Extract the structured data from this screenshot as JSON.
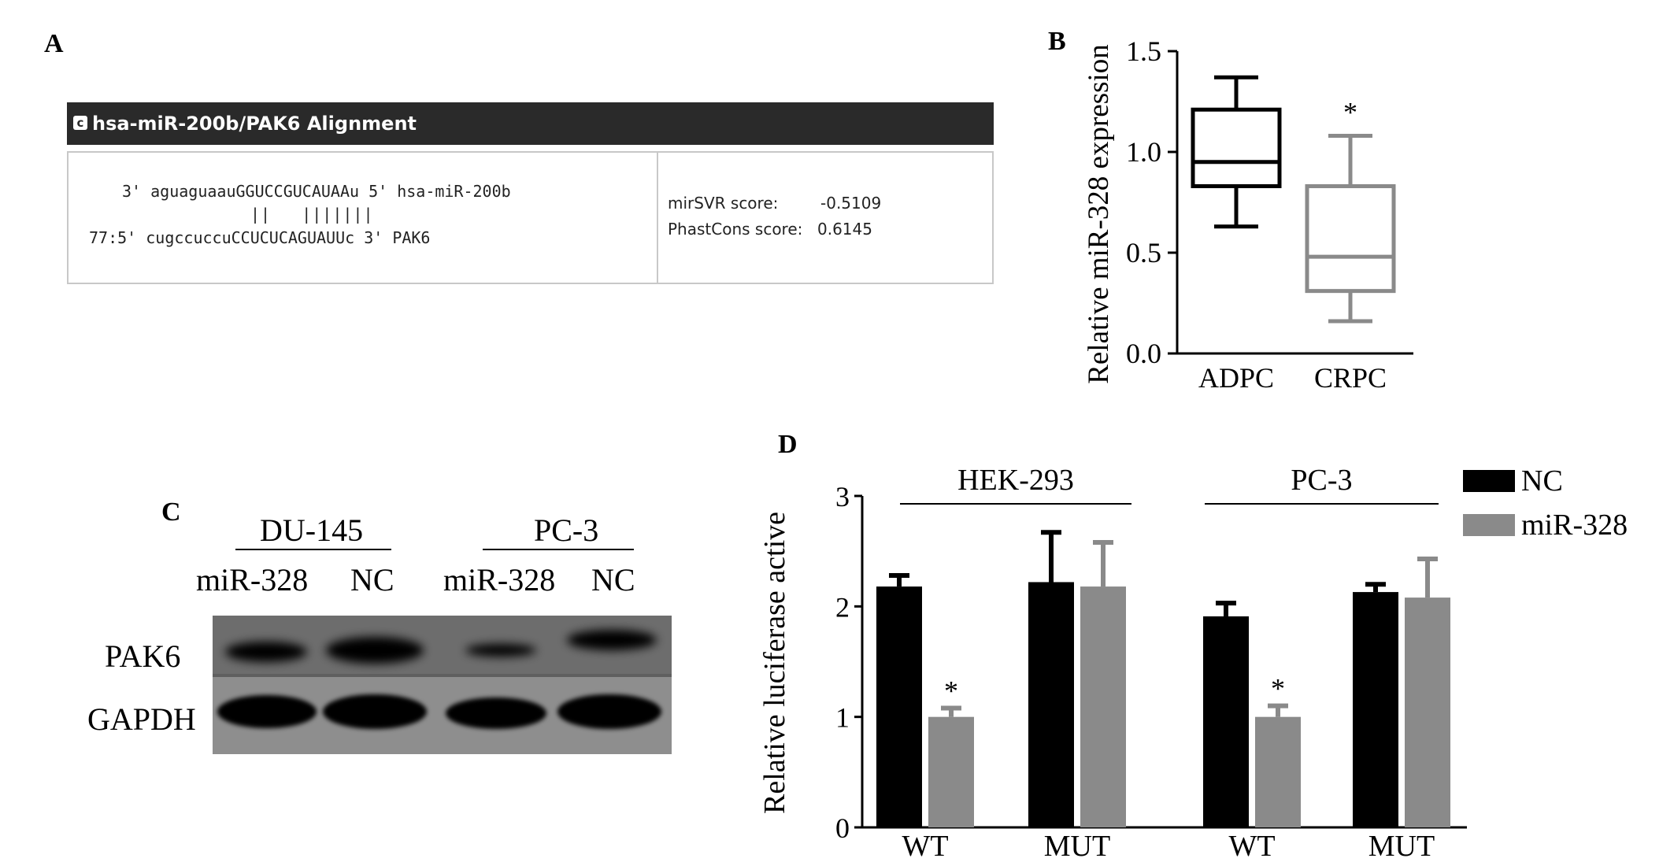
{
  "panel_labels": {
    "a": "A",
    "b": "B",
    "c": "C",
    "d": "D"
  },
  "panel_a": {
    "window_title": "hsa-miR-200b/PAK6 Alignment",
    "title_icon": "c-logo-icon",
    "alignment": {
      "line1": "3' aguaguaauGGUCCGUCAUAAu 5' hsa-miR-200b",
      "pairs": "||   |||||||",
      "line2": "77:5' cugccuccuCCUCUCAGUAUUc 3' PAK6"
    },
    "scores": {
      "mirsvr_label": "mirSVR score:",
      "mirsvr_value": "-0.5109",
      "phastcons_label": "PhastCons score:",
      "phastcons_value": "0.6145"
    }
  },
  "panel_c": {
    "groups": [
      "DU-145",
      "PC-3"
    ],
    "lanes": [
      "miR-328",
      "NC",
      "miR-328",
      "NC"
    ],
    "rows": [
      "PAK6",
      "GAPDH"
    ]
  },
  "chart_data": [
    {
      "type": "box",
      "panel": "B",
      "ylabel": "Relative miR-328 expression",
      "ylim": [
        0.0,
        1.5
      ],
      "yticks": [
        "0.0",
        "0.5",
        "1.0",
        "1.5"
      ],
      "categories": [
        "ADPC",
        "CRPC"
      ],
      "boxes": [
        {
          "category": "ADPC",
          "min": 0.63,
          "q1": 0.83,
          "median": 0.95,
          "q3": 1.21,
          "max": 1.37,
          "color": "#000000",
          "annotation": ""
        },
        {
          "category": "CRPC",
          "min": 0.16,
          "q1": 0.31,
          "median": 0.48,
          "q3": 0.83,
          "max": 1.08,
          "color": "#8a8a8a",
          "annotation": "*"
        }
      ]
    },
    {
      "type": "bar",
      "panel": "D",
      "ylabel": "Relative luciferase active",
      "ylim": [
        0,
        3
      ],
      "yticks": [
        "0",
        "1",
        "2",
        "3"
      ],
      "categories": [
        "WT",
        "MUT",
        "WT",
        "MUT"
      ],
      "groups": [
        {
          "label": "HEK-293",
          "categories": [
            0,
            1
          ]
        },
        {
          "label": "PC-3",
          "categories": [
            2,
            3
          ]
        }
      ],
      "series": [
        {
          "name": "NC",
          "color": "#000000",
          "values": [
            2.18,
            2.22,
            1.91,
            2.13
          ],
          "errors": [
            0.1,
            0.45,
            0.12,
            0.07
          ],
          "annotations": [
            "",
            "",
            "",
            ""
          ]
        },
        {
          "name": "miR-328",
          "color": "#8a8a8a",
          "values": [
            1.0,
            2.18,
            1.0,
            2.08
          ],
          "errors": [
            0.08,
            0.4,
            0.1,
            0.35
          ],
          "annotations": [
            "*",
            "",
            "*",
            ""
          ]
        }
      ],
      "legend_position": "top-right"
    }
  ]
}
